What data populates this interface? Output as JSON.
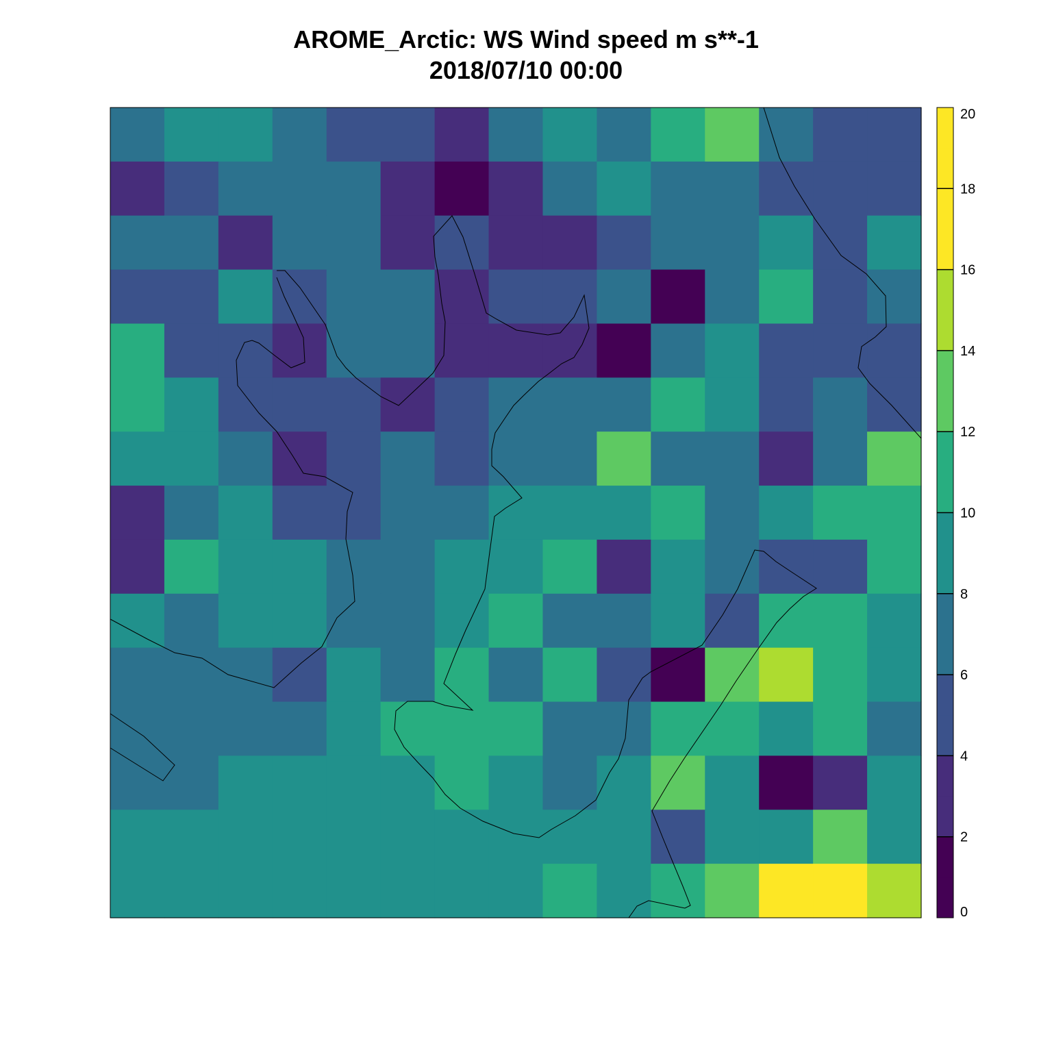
{
  "title": "AROME_Arctic: WS Wind speed m s**-1",
  "subtitle": "2018/07/10 00:00",
  "chart_data": {
    "type": "heatmap",
    "title": "AROME_Arctic: WS Wind speed m s**-1",
    "subtitle": "2018/07/10 00:00",
    "xlabel": "",
    "ylabel": "",
    "colormap": "viridis",
    "grid": false,
    "legend": "right colorbar",
    "colorbar": {
      "range": [
        0,
        20
      ],
      "ticks": [
        "0",
        "2",
        "4",
        "6",
        "8",
        "10",
        "12",
        "14",
        "16",
        "18",
        "20"
      ],
      "colors": [
        "#440154",
        "#472D7B",
        "#3B528B",
        "#2C728E",
        "#21918C",
        "#28AE80",
        "#5EC962",
        "#ADDC30",
        "#FDE725",
        "#FDE725"
      ]
    },
    "rows": 15,
    "cols": 15,
    "values": [
      [
        7,
        9,
        9,
        7,
        5,
        5,
        3,
        7,
        9,
        7,
        11,
        13,
        7,
        5,
        5
      ],
      [
        3,
        5,
        7,
        7,
        7,
        3,
        1,
        3,
        7,
        9,
        7,
        7,
        5,
        5,
        5
      ],
      [
        7,
        7,
        3,
        7,
        7,
        3,
        5,
        3,
        3,
        5,
        7,
        7,
        9,
        5,
        9
      ],
      [
        5,
        5,
        9,
        5,
        7,
        7,
        3,
        5,
        5,
        7,
        1,
        7,
        11,
        5,
        7
      ],
      [
        11,
        5,
        5,
        3,
        7,
        7,
        3,
        3,
        3,
        1,
        7,
        9,
        5,
        5,
        5
      ],
      [
        11,
        9,
        5,
        5,
        5,
        3,
        5,
        7,
        7,
        7,
        11,
        9,
        5,
        7,
        5
      ],
      [
        9,
        9,
        7,
        3,
        5,
        7,
        5,
        7,
        7,
        13,
        7,
        7,
        3,
        7,
        13
      ],
      [
        3,
        7,
        9,
        5,
        5,
        7,
        7,
        9,
        9,
        9,
        11,
        7,
        9,
        11,
        11
      ],
      [
        3,
        11,
        9,
        9,
        7,
        7,
        9,
        9,
        11,
        3,
        9,
        7,
        5,
        5,
        11
      ],
      [
        9,
        7,
        9,
        9,
        7,
        7,
        9,
        11,
        7,
        7,
        9,
        5,
        11,
        11,
        9
      ],
      [
        7,
        7,
        7,
        5,
        9,
        7,
        11,
        7,
        11,
        5,
        1,
        13,
        15,
        11,
        9
      ],
      [
        7,
        7,
        7,
        7,
        9,
        11,
        11,
        11,
        7,
        7,
        11,
        11,
        9,
        11,
        7
      ],
      [
        7,
        7,
        9,
        9,
        9,
        9,
        11,
        9,
        7,
        9,
        13,
        9,
        1,
        3,
        9
      ],
      [
        9,
        9,
        9,
        9,
        9,
        9,
        9,
        9,
        9,
        9,
        5,
        9,
        9,
        13,
        9
      ],
      [
        9,
        9,
        9,
        9,
        9,
        9,
        9,
        9,
        11,
        9,
        11,
        13,
        17,
        17,
        15
      ]
    ]
  }
}
